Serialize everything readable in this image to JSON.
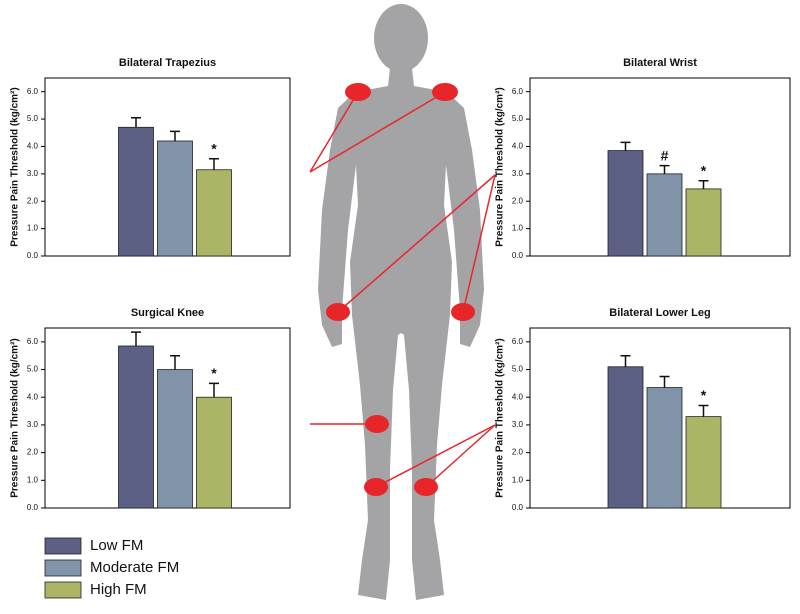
{
  "legend": [
    {
      "name": "Low FM",
      "color": "#5c6084"
    },
    {
      "name": "Moderate FM",
      "color": "#8193a8"
    },
    {
      "name": "High FM",
      "color": "#acb466"
    }
  ],
  "chart_data": [
    {
      "type": "bar",
      "title": "Bilateral Trapezius",
      "ylabel": "Pressure Pain Threshold (kg/cm²)",
      "values": [
        4.7,
        4.2,
        3.15
      ],
      "errors": [
        0.35,
        0.35,
        0.4
      ],
      "markers": [
        null,
        null,
        "*"
      ],
      "ylim": [
        0,
        6.5
      ],
      "yticks": [
        {
          "value": 0,
          "label": "0.0"
        },
        {
          "value": 1,
          "label": "1.0"
        },
        {
          "value": 2,
          "label": "2.0"
        },
        {
          "value": 3,
          "label": "3.0"
        },
        {
          "value": 4,
          "label": "4.0"
        },
        {
          "value": 5,
          "label": "5.0"
        },
        {
          "value": 6,
          "label": "6.0"
        }
      ]
    },
    {
      "type": "bar",
      "title": "Bilateral Wrist",
      "ylabel": "Pressure Pain Threshold (kg/cm²)",
      "values": [
        3.85,
        3.0,
        2.45
      ],
      "errors": [
        0.3,
        0.3,
        0.3
      ],
      "markers": [
        null,
        "#",
        "*"
      ],
      "ylim": [
        0,
        6.5
      ],
      "yticks": [
        {
          "value": 0,
          "label": "0.0"
        },
        {
          "value": 1,
          "label": "1.0"
        },
        {
          "value": 2,
          "label": "2.0"
        },
        {
          "value": 3,
          "label": "3.0"
        },
        {
          "value": 4,
          "label": "4.0"
        },
        {
          "value": 5,
          "label": "5.0"
        },
        {
          "value": 6,
          "label": "6.0"
        }
      ]
    },
    {
      "type": "bar",
      "title": "Surgical Knee",
      "ylabel": "Pressure Pain Threshold (kg/cm²)",
      "values": [
        5.85,
        5.0,
        4.0
      ],
      "errors": [
        0.5,
        0.5,
        0.5
      ],
      "markers": [
        null,
        null,
        "*"
      ],
      "ylim": [
        0,
        6.5
      ],
      "yticks": [
        {
          "value": 0,
          "label": "0.0"
        },
        {
          "value": 1,
          "label": "1.0"
        },
        {
          "value": 2,
          "label": "2.0"
        },
        {
          "value": 3,
          "label": "3.0"
        },
        {
          "value": 4,
          "label": "4.0"
        },
        {
          "value": 5,
          "label": "5.0"
        },
        {
          "value": 6,
          "label": "6.0"
        }
      ]
    },
    {
      "type": "bar",
      "title": "Bilateral Lower Leg",
      "ylabel": "Pressure Pain Threshold (kg/cm²)",
      "values": [
        5.1,
        4.35,
        3.3
      ],
      "errors": [
        0.4,
        0.4,
        0.4
      ],
      "markers": [
        null,
        null,
        "*"
      ],
      "ylim": [
        0,
        6.5
      ],
      "yticks": [
        {
          "value": 0,
          "label": "0.0"
        },
        {
          "value": 1,
          "label": "1.0"
        },
        {
          "value": 2,
          "label": "2.0"
        },
        {
          "value": 3,
          "label": "3.0"
        },
        {
          "value": 4,
          "label": "4.0"
        },
        {
          "value": 5,
          "label": "5.0"
        },
        {
          "value": 6,
          "label": "6.0"
        }
      ]
    }
  ]
}
